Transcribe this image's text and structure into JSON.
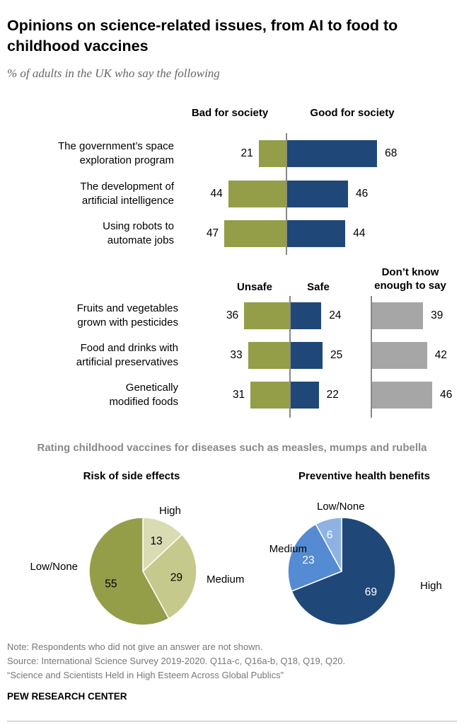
{
  "title": "Opinions on science-related issues, from AI to food to childhood vaccines",
  "subtitle": "% of adults in the UK who say the following",
  "colors": {
    "green": "#949d48",
    "blue": "#1f4878",
    "gray": "#a6a6a6",
    "light_green": "#d9dcb2",
    "mid_green": "#c5ca8c",
    "mid_blue": "#558bd2",
    "light_blue": "#8eb3e3"
  },
  "chart_data": [
    {
      "type": "bar",
      "orientation": "diverging-horizontal",
      "series_headers": [
        "Bad for society",
        "Good for society"
      ],
      "categories": [
        "The government’s space exploration program",
        "The development of artificial intelligence",
        "Using robots to automate jobs"
      ],
      "series": [
        {
          "name": "Bad for society",
          "values": [
            21,
            44,
            47
          ]
        },
        {
          "name": "Good for society",
          "values": [
            68,
            46,
            44
          ]
        }
      ]
    },
    {
      "type": "bar",
      "orientation": "diverging-horizontal",
      "series_headers": [
        "Unsafe",
        "Safe",
        "Don’t know enough to say"
      ],
      "categories": [
        "Fruits and vegetables grown with pesticides",
        "Food and drinks with artificial preservatives",
        "Genetically modified foods"
      ],
      "series": [
        {
          "name": "Unsafe",
          "values": [
            36,
            33,
            31
          ]
        },
        {
          "name": "Safe",
          "values": [
            24,
            25,
            22
          ]
        },
        {
          "name": "Don’t know enough to say",
          "values": [
            39,
            42,
            46
          ]
        }
      ]
    },
    {
      "type": "pie",
      "section_title": "Rating childhood vaccines for diseases such as measles, mumps and rubella",
      "title": "Risk of side effects",
      "slices": [
        {
          "label": "High",
          "value": 13
        },
        {
          "label": "Medium",
          "value": 29
        },
        {
          "label": "Low/None",
          "value": 55
        }
      ]
    },
    {
      "type": "pie",
      "title": "Preventive health benefits",
      "slices": [
        {
          "label": "High",
          "value": 69
        },
        {
          "label": "Medium",
          "value": 23
        },
        {
          "label": "Low/None",
          "value": 6
        }
      ]
    }
  ],
  "footer": {
    "note": "Note: Respondents who did not give an answer are not shown.",
    "source": "Source: International Science Survey 2019-2020. Q11a-c, Q16a-b, Q18, Q19, Q20.",
    "report": "“Science and Scientists Held in High Esteem Across Global Publics”",
    "brand": "PEW RESEARCH CENTER"
  }
}
